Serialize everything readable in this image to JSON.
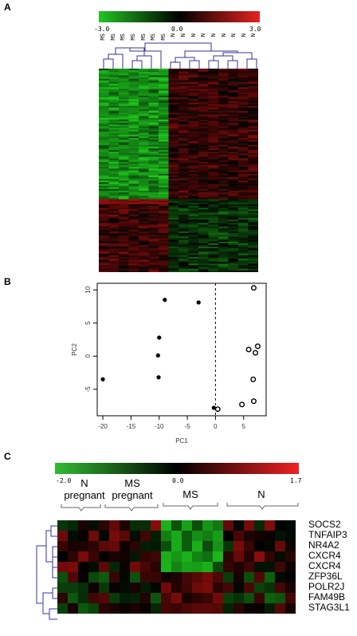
{
  "panels": {
    "a": {
      "letter": "A"
    },
    "b": {
      "letter": "B"
    },
    "c": {
      "letter": "C"
    }
  },
  "panel_a": {
    "scale": {
      "min_label": "-3.0",
      "mid_label": "0.0",
      "max_label": "3.0",
      "colors": [
        "#22c422",
        "#000000",
        "#e52222"
      ]
    },
    "samples": [
      "MS",
      "MS",
      "MS",
      "MS",
      "MS",
      "MS",
      "MS",
      "N",
      "N",
      "N",
      "N",
      "N",
      "N",
      "N",
      "N",
      "N"
    ]
  },
  "chart_data": {
    "type": "scatter",
    "xlabel": "PC1",
    "ylabel": "PC2",
    "xlim": [
      -21,
      9
    ],
    "ylim": [
      -9,
      11
    ],
    "xticks": [
      -20,
      -15,
      -10,
      -5,
      0,
      5
    ],
    "yticks": [
      -5,
      0,
      5,
      10
    ],
    "vline": 0,
    "series": [
      {
        "marker": "filled",
        "x": [
          -20,
          -9,
          -3,
          -10,
          -10.2,
          -10.1,
          -0.3
        ],
        "y": [
          -3.5,
          8.5,
          8.1,
          2.8,
          0.1,
          -3.2,
          -7.8
        ]
      },
      {
        "marker": "open",
        "x": [
          6.8,
          7.5,
          5.9,
          7.1,
          6.7,
          6.8,
          4.7,
          0.4
        ],
        "y": [
          10.3,
          1.5,
          1.0,
          0.5,
          -3.5,
          -6.8,
          -7.3,
          -8.0
        ]
      }
    ]
  },
  "panel_c": {
    "scale": {
      "min_label": "-2.0",
      "mid_label": "0.0",
      "max_label": "1.7",
      "colors": [
        "#33bb33",
        "#000000",
        "#ee2222"
      ]
    },
    "groups": [
      {
        "line1": "N",
        "line2": "pregnant"
      },
      {
        "line1": "MS",
        "line2": "pregnant"
      },
      {
        "line1": "MS",
        "line2": ""
      },
      {
        "line1": "N",
        "line2": ""
      }
    ],
    "genes": [
      "SOCS2",
      "TNFAIP3",
      "NR4A2",
      "CXCR4",
      "CXCR4",
      "ZFP36L",
      "POLR2J",
      "FAM49B",
      "STAG3L1"
    ]
  }
}
